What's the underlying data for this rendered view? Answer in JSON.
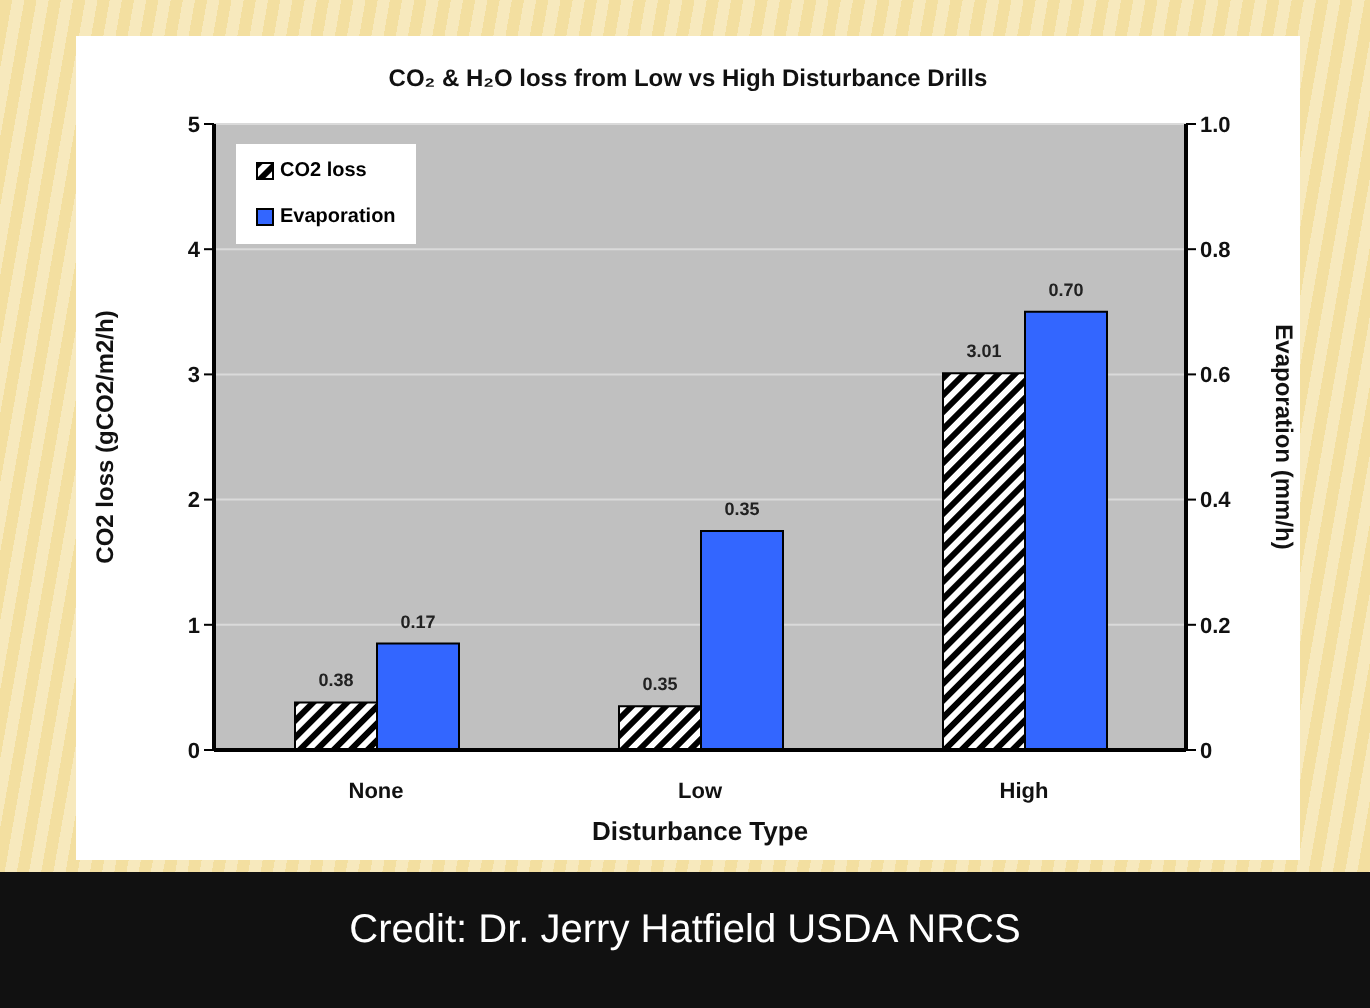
{
  "chart_data": {
    "type": "bar",
    "title": "CO₂ & H₂O loss from Low vs High Disturbance Drills",
    "xlabel": "Disturbance Type",
    "ylabel": "CO2 loss (gCO2/m2/h)",
    "y2label": "Evaporation (mm/h)",
    "categories": [
      "None",
      "Low",
      "High"
    ],
    "series": [
      {
        "name": "CO2 loss",
        "color": "#000000",
        "values": [
          0.38,
          0.35,
          3.01
        ],
        "value_labels": [
          "0.38",
          "0.35",
          "3.01"
        ]
      },
      {
        "name": "Evaporation",
        "axis": "y2",
        "color": "#3366ff",
        "values": [
          0.17,
          0.35,
          0.7
        ],
        "value_labels": [
          "0.17",
          "0.35",
          "0.70"
        ]
      }
    ],
    "ylim": [
      0,
      5
    ],
    "yticks": [
      0,
      1,
      2,
      3,
      4,
      5
    ],
    "y2lim": [
      0,
      1
    ],
    "y2ticks": [
      0,
      0.2,
      0.4,
      0.6,
      0.8,
      {
        "value": 1,
        "label": "1.0"
      }
    ],
    "grid": "y",
    "legend": "top left",
    "annotations": [
      "Credit: Dr. Jerry Hatfield USDA NRCS"
    ]
  }
}
